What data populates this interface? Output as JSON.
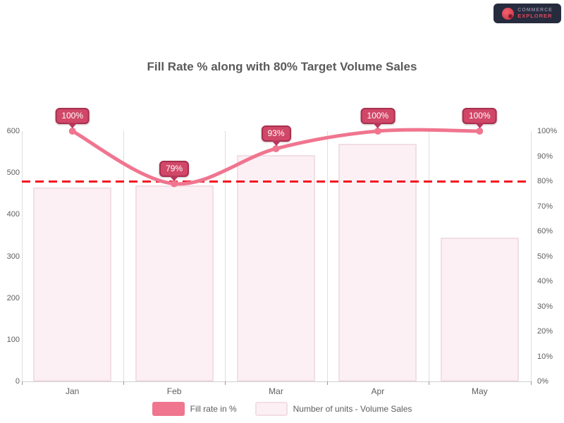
{
  "logo": {
    "line1": "COMMERCE",
    "line2": "EXPLORER",
    "icon": "red-circle-logo",
    "bg_color": "#262b3d"
  },
  "chart_data": {
    "type": "bar+line",
    "title": "Fill Rate % along with 80% Target Volume Sales",
    "categories": [
      "Jan",
      "Feb",
      "Mar",
      "Apr",
      "May"
    ],
    "series": [
      {
        "name": "Fill rate in %",
        "type": "line",
        "axis": "right",
        "values": [
          100,
          79,
          93,
          100,
          100
        ],
        "labels": [
          "100%",
          "79%",
          "93%",
          "100%",
          "100%"
        ],
        "color": "#f0758f",
        "label_badge_color": "#d14767"
      },
      {
        "name": "Number of units - Volume Sales",
        "type": "bar",
        "axis": "left",
        "values": [
          465,
          470,
          542,
          570,
          345
        ],
        "color": "#fcf0f4",
        "border_color": "#f2dee6"
      }
    ],
    "target_line": {
      "value": 80,
      "axis": "right",
      "style": "dashed",
      "color": "#f51421"
    },
    "left_axis": {
      "min": 0,
      "max": 600,
      "ticks": [
        "600",
        "500",
        "400",
        "300",
        "200",
        "100",
        "0"
      ]
    },
    "right_axis": {
      "min": 0,
      "max": 100,
      "ticks": [
        "100%",
        "90%",
        "80%",
        "70%",
        "60%",
        "50%",
        "40%",
        "30%",
        "20%",
        "10%",
        "0%"
      ]
    },
    "legend_position": "bottom",
    "grid": "faint-vertical-category-lines"
  }
}
